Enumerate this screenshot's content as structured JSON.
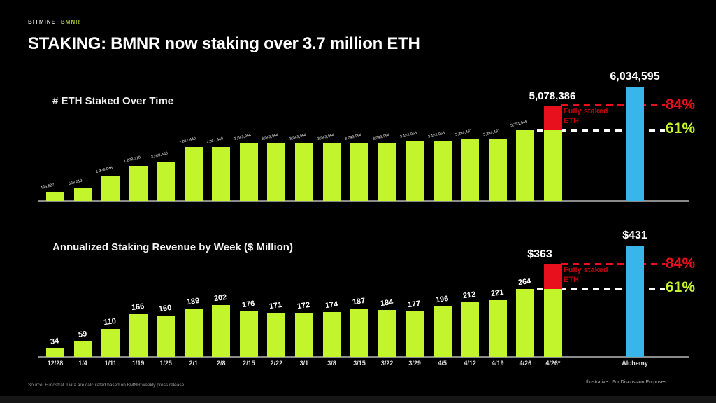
{
  "meta": {
    "logo_primary": "BITMINE",
    "logo_secondary": "BMNR",
    "title": "STAKING: BMNR now staking over 3.7 million ETH",
    "footer_left": "Source: Fundstrat. Data are calculated based on BMNR weekly press release.",
    "footer_right": "Illustrative  |  For Discussion Purposes"
  },
  "colors": {
    "green": "#c3f52c",
    "red": "#e8101c",
    "blue": "#38b6e9",
    "axis": "#8a8a8a"
  },
  "chart_data": [
    {
      "type": "bar",
      "title": "# ETH Staked Over Time",
      "categories": [
        "12/28",
        "1/4",
        "1/11",
        "1/19",
        "1/25",
        "2/1",
        "2/8",
        "2/15",
        "2/22",
        "3/1",
        "3/8",
        "3/15",
        "3/22",
        "3/29",
        "4/5",
        "4/12",
        "4/19",
        "4/26",
        "4/26*",
        "Alchemy"
      ],
      "values": [
        435827,
        688219,
        1306046,
        1878318,
        2069443,
        2867440,
        2867440,
        3043954,
        3043954,
        3043954,
        3043954,
        3043954,
        3043954,
        3152066,
        3152066,
        3294437,
        3294437,
        3751546,
        5078386,
        6034595
      ],
      "bar_labels": [
        "435,827",
        "688,219",
        "1,306,046",
        "1,878,318",
        "2,069,443",
        "2,867,440",
        "2,867,440",
        "3,043,954",
        "3,043,954",
        "3,043,954",
        "3,043,954",
        "3,043,954",
        "3,043,954",
        "3,152,066",
        "3,152,066",
        "3,294,437",
        "3,294,437",
        "3,751,546"
      ],
      "highlight": {
        "red_label": "5,078,386",
        "blue_label": "6,034,595",
        "red_stacked_on_value": 3751546
      },
      "annotations": {
        "fully_staked_line1": "Fully staked",
        "fully_staked_line2": "ETH",
        "pct_red": "84%",
        "pct_green": "61%"
      },
      "ylim": [
        0,
        6034595
      ],
      "grid": false,
      "legend": "none"
    },
    {
      "type": "bar",
      "title": "Annualized Staking Revenue by Week ($ Million)",
      "categories": [
        "12/28",
        "1/4",
        "1/11",
        "1/19",
        "1/25",
        "2/1",
        "2/8",
        "2/15",
        "2/22",
        "3/1",
        "3/8",
        "3/15",
        "3/22",
        "3/29",
        "4/5",
        "4/12",
        "4/19",
        "4/26",
        "4/26*",
        "Alchemy"
      ],
      "values": [
        34,
        59,
        110,
        166,
        160,
        189,
        202,
        176,
        171,
        172,
        174,
        187,
        184,
        177,
        196,
        212,
        221,
        264,
        363,
        431
      ],
      "bar_labels": [
        "34",
        "59",
        "110",
        "166",
        "160",
        "189",
        "202",
        "176",
        "171",
        "172",
        "174",
        "187",
        "184",
        "177",
        "196",
        "212",
        "221",
        "264"
      ],
      "highlight": {
        "red_label": "$363",
        "blue_label": "$431",
        "red_stacked_on_value": 264
      },
      "annotations": {
        "fully_staked_line1": "Fully staked",
        "fully_staked_line2": "ETH",
        "pct_red": "84%",
        "pct_green": "61%"
      },
      "ylim": [
        0,
        431
      ],
      "grid": false,
      "legend": "none"
    }
  ]
}
